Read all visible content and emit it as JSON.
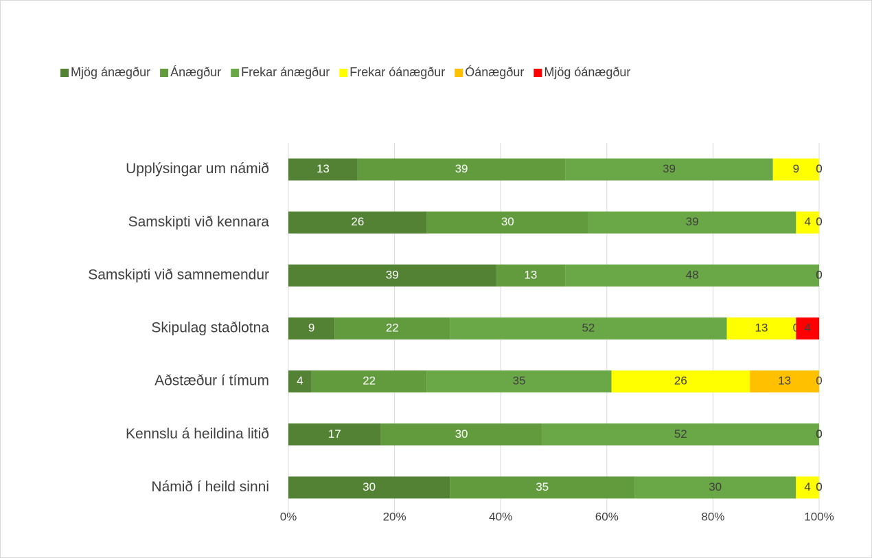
{
  "chart_data": {
    "type": "stacked-bar-horizontal",
    "categories": [
      "Upplýsingar um námið",
      "Samskipti við kennara",
      "Samskipti við samnemendur",
      "Skipulag staðlotna",
      "Aðstæður í tímum",
      "Kennslu á heildina litið",
      "Námið í heild sinni"
    ],
    "series": [
      {
        "name": "Mjög ánægður",
        "color": "#548235",
        "values": [
          13.04,
          26.09,
          39.13,
          8.7,
          4.35,
          17.39,
          30.43
        ],
        "value_labels": [
          "13",
          "26",
          "39",
          "9",
          "4",
          "17",
          "30"
        ]
      },
      {
        "name": "Ánægður",
        "color": "#619b3d",
        "values": [
          39.13,
          30.43,
          13.04,
          21.74,
          21.74,
          30.43,
          34.78
        ],
        "value_labels": [
          "39",
          "30",
          "13",
          "22",
          "22",
          "30",
          "35"
        ]
      },
      {
        "name": "Frekar ánægður",
        "color": "#6aa746",
        "values": [
          39.13,
          39.13,
          47.83,
          52.17,
          34.78,
          52.17,
          30.43
        ],
        "value_labels": [
          "39",
          "39",
          "48",
          "52",
          "35",
          "52",
          "30"
        ]
      },
      {
        "name": "Frekar óánægður",
        "color": "#ffff00",
        "values": [
          8.7,
          4.35,
          0,
          13.04,
          26.09,
          0,
          4.35
        ],
        "value_labels": [
          "9",
          "4",
          "0",
          "13",
          "26",
          "0",
          "4"
        ]
      },
      {
        "name": "Óánægður",
        "color": "#ffc000",
        "values": [
          0,
          0,
          0,
          0,
          13.04,
          0,
          0
        ],
        "value_labels": [
          "0",
          "0",
          "0",
          "0",
          "13",
          "0",
          "0"
        ]
      },
      {
        "name": "Mjög óánægður",
        "color": "#ff0000",
        "values": [
          0,
          0,
          0,
          4.35,
          0,
          0,
          0
        ],
        "value_labels": [
          "0",
          "0",
          "0",
          "4",
          "0",
          "0",
          "0"
        ]
      }
    ],
    "xlim": [
      0,
      100
    ],
    "xticks": [
      {
        "value": 0,
        "label": "0%"
      },
      {
        "value": 20,
        "label": "20%"
      },
      {
        "value": 40,
        "label": "40%"
      },
      {
        "value": 60,
        "label": "60%"
      },
      {
        "value": 80,
        "label": "80%"
      },
      {
        "value": 100,
        "label": "100%"
      }
    ],
    "grid": true,
    "legend": "top"
  }
}
